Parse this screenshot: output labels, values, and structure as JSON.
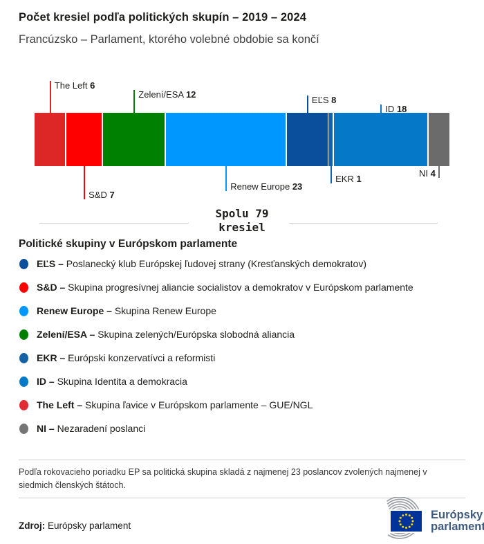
{
  "header": {
    "title": "Počet kresiel podľa politických skupín – 2019 – 2024",
    "subtitle": "Francúzsko – Parlament, ktorého volebné obdobie sa končí"
  },
  "chart_data": {
    "type": "bar",
    "variant": "horizontal-stacked-seats",
    "title": "Počet kresiel podľa politických skupín – 2019 – 2024",
    "subtitle": "Francúzsko – Parlament, ktorého volebné obdobie sa končí",
    "total_seats": 79,
    "total_label_line1": "Spolu 79",
    "total_label_line2": "kresiel",
    "categories": [
      "The Left",
      "S&D",
      "Zelení/ESA",
      "Renew Europe",
      "EĽS",
      "EKR",
      "ID",
      "NI"
    ],
    "values": [
      6,
      7,
      12,
      23,
      8,
      1,
      18,
      4
    ],
    "segments": [
      {
        "name": "The Left",
        "seats": 6,
        "color": "#dd2626",
        "label_side": "top",
        "line_len": 46,
        "text_before": false
      },
      {
        "name": "S&D",
        "seats": 7,
        "color": "#fe0000",
        "label_side": "bottom",
        "line_len": 48,
        "text_before": false
      },
      {
        "name": "Zelení/ESA",
        "seats": 12,
        "color": "#008000",
        "label_side": "top",
        "line_len": 33,
        "text_before": false
      },
      {
        "name": "Renew Europe",
        "seats": 23,
        "color": "#0098fe",
        "label_side": "bottom",
        "line_len": 36,
        "text_before": false
      },
      {
        "name": "EĽS",
        "seats": 8,
        "color": "#0a4f9b",
        "label_side": "top",
        "line_len": 25,
        "text_before": false
      },
      {
        "name": "EKR",
        "seats": 1,
        "color": "#1562a5",
        "label_side": "bottom",
        "line_len": 25,
        "text_before": false
      },
      {
        "name": "ID",
        "seats": 18,
        "color": "#0678c8",
        "label_side": "top",
        "line_len": 12,
        "text_before": false
      },
      {
        "name": "NI",
        "seats": 4,
        "color": "#6b6b6b",
        "label_side": "bottom",
        "line_len": 17,
        "text_before": true
      }
    ],
    "legend_position": "bottom",
    "grid": false
  },
  "legend": {
    "title": "Politické skupiny v Európskom parlamente",
    "items": [
      {
        "abbr": "EĽS –",
        "desc": "Poslanecký klub Európskej ľudovej strany (Kresťanských demokratov)",
        "color": "#0a4f9b"
      },
      {
        "abbr": "S&D –",
        "desc": "Skupina progresívnej aliancie socialistov a demokratov v Európskom parlamente",
        "color": "#fe0000"
      },
      {
        "abbr": "Renew Europe –",
        "desc": "Skupina Renew Europe",
        "color": "#0098fe"
      },
      {
        "abbr": "Zelení/ESA –",
        "desc": "Skupina zelených/Európska slobodná aliancia",
        "color": "#008000"
      },
      {
        "abbr": "EKR –",
        "desc": "Európski konzervatívci a reformisti",
        "color": "#1562a5"
      },
      {
        "abbr": "ID –",
        "desc": "Skupina Identita a demokracia",
        "color": "#0678c8"
      },
      {
        "abbr": "The Left –",
        "desc": "Skupina ľavice v Európskom parlamente – GUE/NGL",
        "color": "#e02d33"
      },
      {
        "abbr": "NI –",
        "desc": "Nezaradení poslanci",
        "color": "#757575"
      }
    ]
  },
  "footnote": "Podľa rokovacieho poriadku EP sa politická skupina skladá z najmenej 23 poslancov zvolených najmenej v siedmich členských štátoch.",
  "source": {
    "label": "Zdroj:",
    "value": "Európsky parlament"
  },
  "logo": {
    "line1": "Európsky",
    "line2": "parlament",
    "flag_color": "#003399",
    "star_color": "#ffd617",
    "arc_color": "#9aa0a6"
  }
}
